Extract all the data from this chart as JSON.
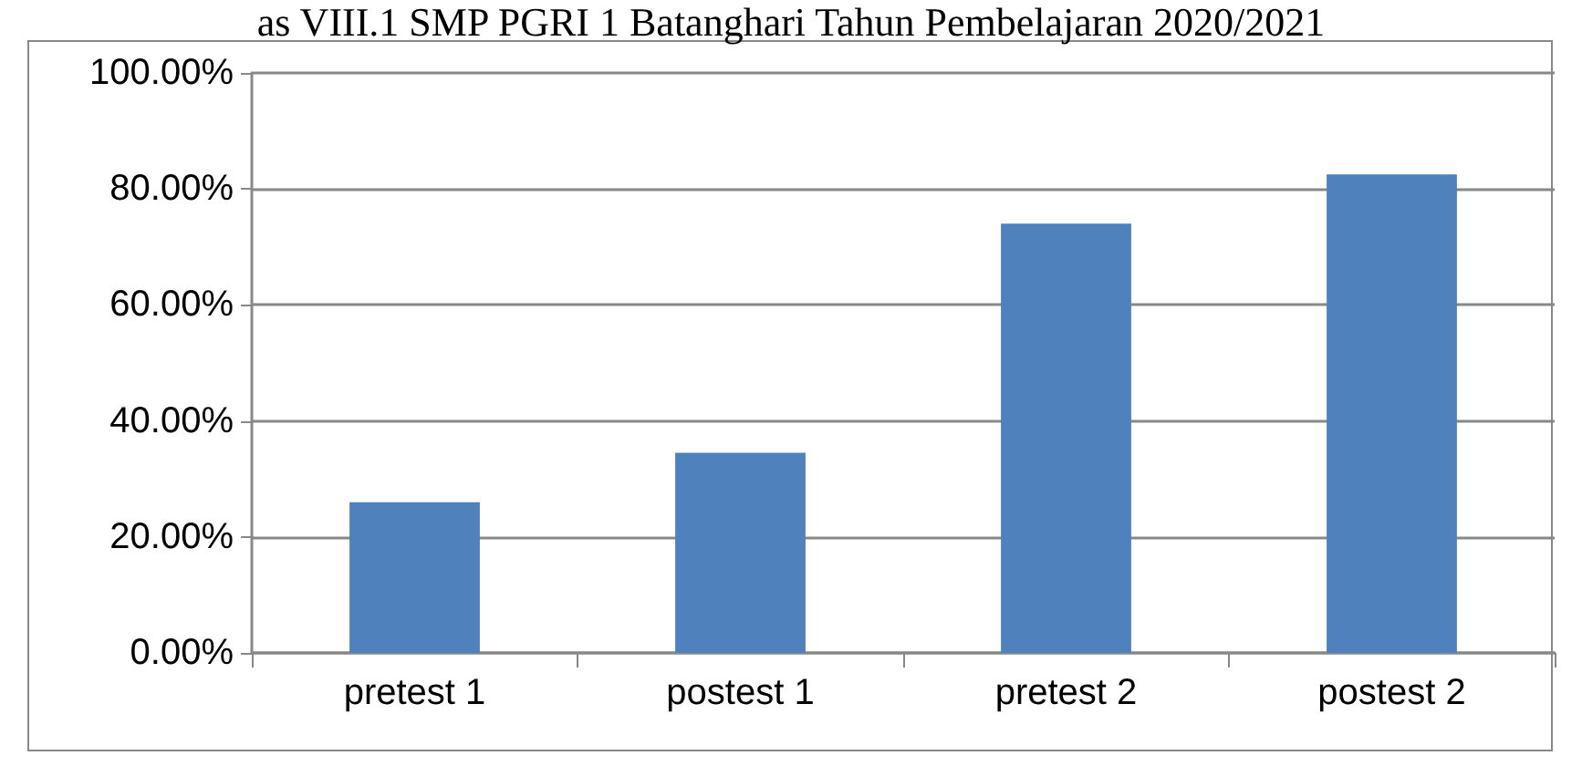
{
  "chart_data": {
    "type": "bar",
    "title": "as VIII.1 SMP PGRI 1 Batanghari Tahun Pembelajaran 2020/2021",
    "categories": [
      "pretest 1",
      "postest 1",
      "pretest 2",
      "postest 2"
    ],
    "values": [
      26,
      34.5,
      74,
      82.5
    ],
    "color": "#4f81bd",
    "ylim": [
      0,
      100
    ],
    "yticks": [
      {
        "value": 0,
        "label": "0.00%"
      },
      {
        "value": 20,
        "label": "20.00%"
      },
      {
        "value": 40,
        "label": "40.00%"
      },
      {
        "value": 60,
        "label": "60.00%"
      },
      {
        "value": 80,
        "label": "80.00%"
      },
      {
        "value": 100,
        "label": "100.00%"
      }
    ],
    "grid": "y"
  }
}
